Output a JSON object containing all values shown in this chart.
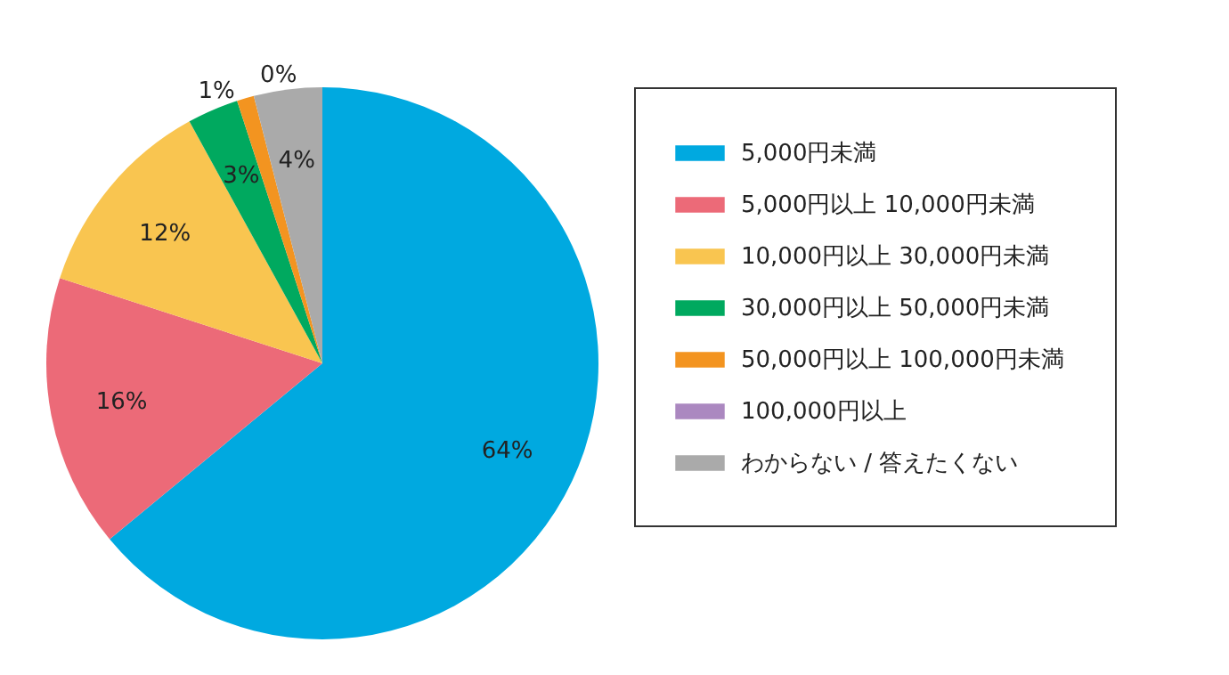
{
  "chart_data": {
    "type": "pie",
    "categories": [
      "5,000円未満",
      "5,000円以上 10,000円未満",
      "10,000円以上 30,000円未満",
      "30,000円以上 50,000円未満",
      "50,000円以上 100,000円未満",
      "100,000円以上",
      "わからない / 答えたくない"
    ],
    "values": [
      64,
      16,
      12,
      3,
      1,
      0,
      4
    ],
    "value_labels": [
      "64%",
      "16%",
      "12%",
      "3%",
      "1%",
      "0%",
      "4%"
    ],
    "colors": [
      "#00a9e0",
      "#ec6a78",
      "#f9c550",
      "#00a95f",
      "#f39420",
      "#ab88c0",
      "#aaaaaa"
    ],
    "legend": "right"
  }
}
